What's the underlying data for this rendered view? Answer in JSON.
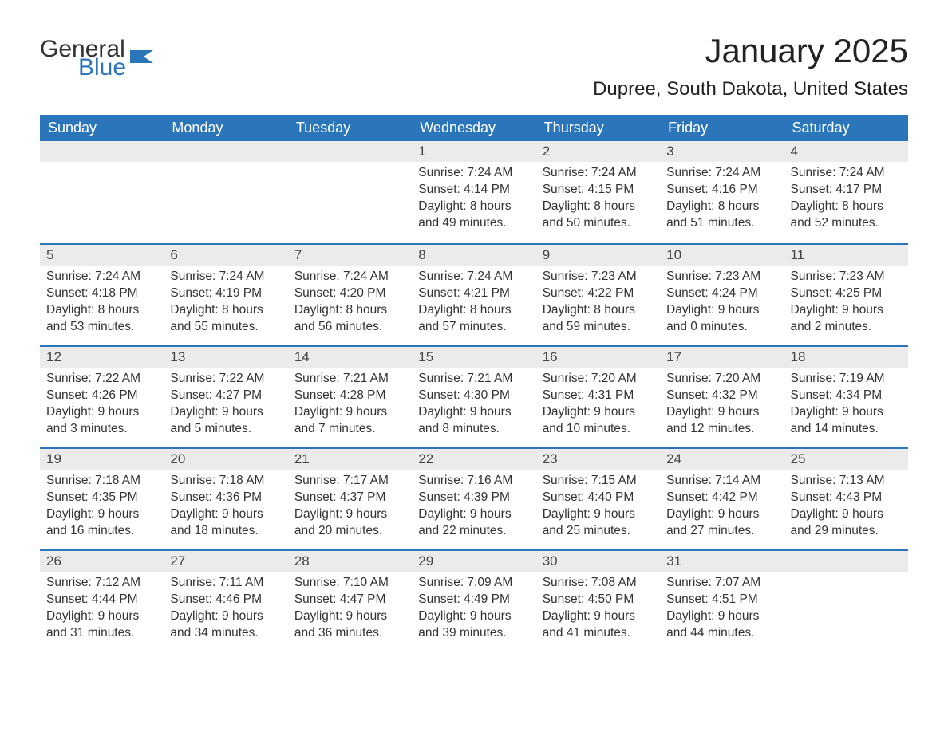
{
  "logo": {
    "general": "General",
    "blue": "Blue"
  },
  "title": "January 2025",
  "location": "Dupree, South Dakota, United States",
  "colors": {
    "header_bg": "#2b75bb",
    "header_text": "#ffffff",
    "daynum_bg": "#ebebeb",
    "daynum_text": "#444444",
    "body_text": "#333333",
    "row_border": "#2b75bb",
    "page_bg": "#ffffff",
    "logo_blue": "#2b75bb"
  },
  "typography": {
    "title_fontsize": 42,
    "location_fontsize": 24,
    "weekday_fontsize": 18,
    "daynum_fontsize": 17,
    "body_fontsize": 15.5
  },
  "weekdays": [
    "Sunday",
    "Monday",
    "Tuesday",
    "Wednesday",
    "Thursday",
    "Friday",
    "Saturday"
  ],
  "weeks": [
    [
      {
        "num": "",
        "lines": []
      },
      {
        "num": "",
        "lines": []
      },
      {
        "num": "",
        "lines": []
      },
      {
        "num": "1",
        "lines": [
          "Sunrise: 7:24 AM",
          "Sunset: 4:14 PM",
          "Daylight: 8 hours and 49 minutes."
        ]
      },
      {
        "num": "2",
        "lines": [
          "Sunrise: 7:24 AM",
          "Sunset: 4:15 PM",
          "Daylight: 8 hours and 50 minutes."
        ]
      },
      {
        "num": "3",
        "lines": [
          "Sunrise: 7:24 AM",
          "Sunset: 4:16 PM",
          "Daylight: 8 hours and 51 minutes."
        ]
      },
      {
        "num": "4",
        "lines": [
          "Sunrise: 7:24 AM",
          "Sunset: 4:17 PM",
          "Daylight: 8 hours and 52 minutes."
        ]
      }
    ],
    [
      {
        "num": "5",
        "lines": [
          "Sunrise: 7:24 AM",
          "Sunset: 4:18 PM",
          "Daylight: 8 hours and 53 minutes."
        ]
      },
      {
        "num": "6",
        "lines": [
          "Sunrise: 7:24 AM",
          "Sunset: 4:19 PM",
          "Daylight: 8 hours and 55 minutes."
        ]
      },
      {
        "num": "7",
        "lines": [
          "Sunrise: 7:24 AM",
          "Sunset: 4:20 PM",
          "Daylight: 8 hours and 56 minutes."
        ]
      },
      {
        "num": "8",
        "lines": [
          "Sunrise: 7:24 AM",
          "Sunset: 4:21 PM",
          "Daylight: 8 hours and 57 minutes."
        ]
      },
      {
        "num": "9",
        "lines": [
          "Sunrise: 7:23 AM",
          "Sunset: 4:22 PM",
          "Daylight: 8 hours and 59 minutes."
        ]
      },
      {
        "num": "10",
        "lines": [
          "Sunrise: 7:23 AM",
          "Sunset: 4:24 PM",
          "Daylight: 9 hours and 0 minutes."
        ]
      },
      {
        "num": "11",
        "lines": [
          "Sunrise: 7:23 AM",
          "Sunset: 4:25 PM",
          "Daylight: 9 hours and 2 minutes."
        ]
      }
    ],
    [
      {
        "num": "12",
        "lines": [
          "Sunrise: 7:22 AM",
          "Sunset: 4:26 PM",
          "Daylight: 9 hours and 3 minutes."
        ]
      },
      {
        "num": "13",
        "lines": [
          "Sunrise: 7:22 AM",
          "Sunset: 4:27 PM",
          "Daylight: 9 hours and 5 minutes."
        ]
      },
      {
        "num": "14",
        "lines": [
          "Sunrise: 7:21 AM",
          "Sunset: 4:28 PM",
          "Daylight: 9 hours and 7 minutes."
        ]
      },
      {
        "num": "15",
        "lines": [
          "Sunrise: 7:21 AM",
          "Sunset: 4:30 PM",
          "Daylight: 9 hours and 8 minutes."
        ]
      },
      {
        "num": "16",
        "lines": [
          "Sunrise: 7:20 AM",
          "Sunset: 4:31 PM",
          "Daylight: 9 hours and 10 minutes."
        ]
      },
      {
        "num": "17",
        "lines": [
          "Sunrise: 7:20 AM",
          "Sunset: 4:32 PM",
          "Daylight: 9 hours and 12 minutes."
        ]
      },
      {
        "num": "18",
        "lines": [
          "Sunrise: 7:19 AM",
          "Sunset: 4:34 PM",
          "Daylight: 9 hours and 14 minutes."
        ]
      }
    ],
    [
      {
        "num": "19",
        "lines": [
          "Sunrise: 7:18 AM",
          "Sunset: 4:35 PM",
          "Daylight: 9 hours and 16 minutes."
        ]
      },
      {
        "num": "20",
        "lines": [
          "Sunrise: 7:18 AM",
          "Sunset: 4:36 PM",
          "Daylight: 9 hours and 18 minutes."
        ]
      },
      {
        "num": "21",
        "lines": [
          "Sunrise: 7:17 AM",
          "Sunset: 4:37 PM",
          "Daylight: 9 hours and 20 minutes."
        ]
      },
      {
        "num": "22",
        "lines": [
          "Sunrise: 7:16 AM",
          "Sunset: 4:39 PM",
          "Daylight: 9 hours and 22 minutes."
        ]
      },
      {
        "num": "23",
        "lines": [
          "Sunrise: 7:15 AM",
          "Sunset: 4:40 PM",
          "Daylight: 9 hours and 25 minutes."
        ]
      },
      {
        "num": "24",
        "lines": [
          "Sunrise: 7:14 AM",
          "Sunset: 4:42 PM",
          "Daylight: 9 hours and 27 minutes."
        ]
      },
      {
        "num": "25",
        "lines": [
          "Sunrise: 7:13 AM",
          "Sunset: 4:43 PM",
          "Daylight: 9 hours and 29 minutes."
        ]
      }
    ],
    [
      {
        "num": "26",
        "lines": [
          "Sunrise: 7:12 AM",
          "Sunset: 4:44 PM",
          "Daylight: 9 hours and 31 minutes."
        ]
      },
      {
        "num": "27",
        "lines": [
          "Sunrise: 7:11 AM",
          "Sunset: 4:46 PM",
          "Daylight: 9 hours and 34 minutes."
        ]
      },
      {
        "num": "28",
        "lines": [
          "Sunrise: 7:10 AM",
          "Sunset: 4:47 PM",
          "Daylight: 9 hours and 36 minutes."
        ]
      },
      {
        "num": "29",
        "lines": [
          "Sunrise: 7:09 AM",
          "Sunset: 4:49 PM",
          "Daylight: 9 hours and 39 minutes."
        ]
      },
      {
        "num": "30",
        "lines": [
          "Sunrise: 7:08 AM",
          "Sunset: 4:50 PM",
          "Daylight: 9 hours and 41 minutes."
        ]
      },
      {
        "num": "31",
        "lines": [
          "Sunrise: 7:07 AM",
          "Sunset: 4:51 PM",
          "Daylight: 9 hours and 44 minutes."
        ]
      },
      {
        "num": "",
        "lines": []
      }
    ]
  ]
}
